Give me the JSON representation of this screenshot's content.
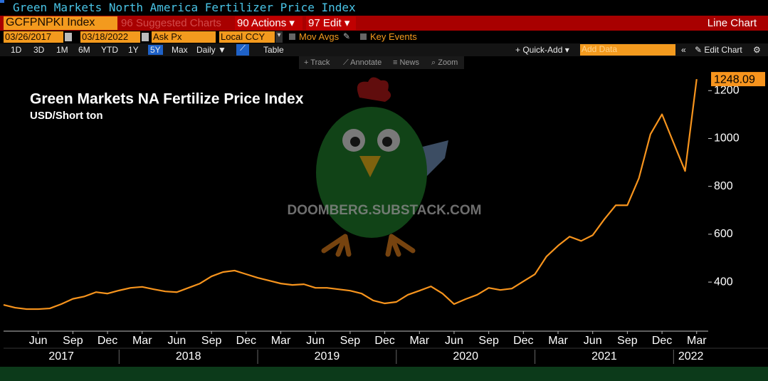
{
  "header": {
    "title": "Green Markets North America Fertilizer Price Index"
  },
  "command_bar": {
    "ticker": "GCFPNPKI Index",
    "suggested": "96 Suggested Charts",
    "actions": "90 Actions",
    "edit": "97 Edit",
    "chart_type": "Line Chart"
  },
  "settings": {
    "start_date": "03/26/2017",
    "end_date": "03/18/2022",
    "field": "Ask Px",
    "currency": "Local CCY",
    "mov_avgs": "Mov Avgs",
    "key_events": "Key Events"
  },
  "range_bar": {
    "periods": [
      "1D",
      "3D",
      "1M",
      "6M",
      "YTD",
      "1Y",
      "5Y",
      "Max"
    ],
    "selected_index": 6,
    "frequency": "Daily",
    "table": "Table",
    "quick_add": "Quick-Add",
    "add_data": "Add Data",
    "edit_chart": "Edit Chart"
  },
  "tools": [
    "Track",
    "Annotate",
    "News",
    "Zoom"
  ],
  "watermark": "DOOMBERG.SUBSTACK.COM",
  "chart_data": {
    "type": "line",
    "title": "Green Markets NA Fertilize Price Index",
    "subtitle": "USD/Short ton",
    "x": [
      "2017-03",
      "2017-04",
      "2017-05",
      "2017-06",
      "2017-07",
      "2017-08",
      "2017-09",
      "2017-10",
      "2017-11",
      "2017-12",
      "2018-01",
      "2018-02",
      "2018-03",
      "2018-04",
      "2018-05",
      "2018-06",
      "2018-07",
      "2018-08",
      "2018-09",
      "2018-10",
      "2018-11",
      "2018-12",
      "2019-01",
      "2019-02",
      "2019-03",
      "2019-04",
      "2019-05",
      "2019-06",
      "2019-07",
      "2019-08",
      "2019-09",
      "2019-10",
      "2019-11",
      "2019-12",
      "2020-01",
      "2020-02",
      "2020-03",
      "2020-04",
      "2020-05",
      "2020-06",
      "2020-07",
      "2020-08",
      "2020-09",
      "2020-10",
      "2020-11",
      "2020-12",
      "2021-01",
      "2021-02",
      "2021-03",
      "2021-04",
      "2021-05",
      "2021-06",
      "2021-07",
      "2021-08",
      "2021-09",
      "2021-10",
      "2021-11",
      "2021-12",
      "2022-01",
      "2022-02",
      "2022-03"
    ],
    "values": [
      305,
      293,
      287,
      287,
      290,
      308,
      330,
      340,
      358,
      352,
      365,
      376,
      380,
      370,
      361,
      358,
      376,
      394,
      424,
      442,
      448,
      433,
      418,
      406,
      394,
      388,
      391,
      376,
      376,
      370,
      364,
      352,
      323,
      311,
      317,
      347,
      364,
      382,
      352,
      308,
      329,
      347,
      376,
      367,
      373,
      403,
      433,
      507,
      552,
      590,
      572,
      596,
      662,
      721,
      721,
      834,
      1018,
      1101,
      982,
      864,
      1248.09
    ],
    "color": "#f7941d",
    "xlim": [
      "2017-03",
      "2022-04"
    ],
    "xticks": [
      {
        "value": "2017-06",
        "label": "Jun"
      },
      {
        "value": "2017-09",
        "label": "Sep"
      },
      {
        "value": "2017-12",
        "label": "Dec"
      },
      {
        "value": "2018-03",
        "label": "Mar"
      },
      {
        "value": "2018-06",
        "label": "Jun"
      },
      {
        "value": "2018-09",
        "label": "Sep"
      },
      {
        "value": "2018-12",
        "label": "Dec"
      },
      {
        "value": "2019-03",
        "label": "Mar"
      },
      {
        "value": "2019-06",
        "label": "Jun"
      },
      {
        "value": "2019-09",
        "label": "Sep"
      },
      {
        "value": "2019-12",
        "label": "Dec"
      },
      {
        "value": "2020-03",
        "label": "Mar"
      },
      {
        "value": "2020-06",
        "label": "Jun"
      },
      {
        "value": "2020-09",
        "label": "Sep"
      },
      {
        "value": "2020-12",
        "label": "Dec"
      },
      {
        "value": "2021-03",
        "label": "Mar"
      },
      {
        "value": "2021-06",
        "label": "Jun"
      },
      {
        "value": "2021-09",
        "label": "Sep"
      },
      {
        "value": "2021-12",
        "label": "Dec"
      },
      {
        "value": "2022-03",
        "label": "Mar"
      }
    ],
    "years": [
      2017,
      2018,
      2019,
      2020,
      2021,
      2022
    ],
    "ylim": [
      195,
      1290
    ],
    "yticks": [
      400,
      600,
      800,
      1000,
      1200
    ],
    "grid": false
  }
}
